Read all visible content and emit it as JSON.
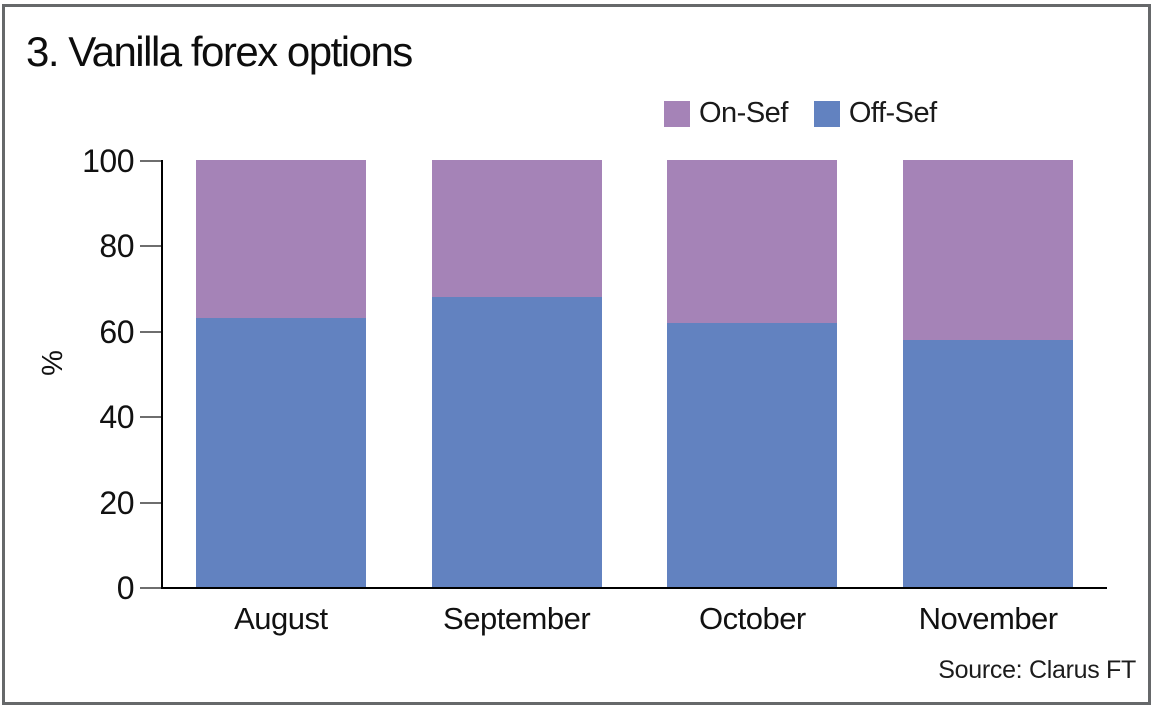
{
  "chart_data": {
    "type": "bar",
    "stacked": true,
    "title": "3. Vanilla forex options",
    "ylabel": "%",
    "ylim": [
      0,
      100
    ],
    "yticks": [
      0,
      20,
      40,
      60,
      80,
      100
    ],
    "categories": [
      "August",
      "September",
      "October",
      "November"
    ],
    "series": [
      {
        "name": "Off-Sef",
        "color": "#6282c0",
        "values": [
          63,
          68,
          62,
          58
        ]
      },
      {
        "name": "On-Sef",
        "color": "#a583b7",
        "values": [
          37,
          32,
          38,
          42
        ]
      }
    ],
    "legend": {
      "position": "top-right",
      "entries": [
        "On-Sef",
        "Off-Sef"
      ]
    },
    "grid": false,
    "axis_color": "#000000",
    "tick_color": "#6e6e6e",
    "frame_border_color": "#66686a",
    "source": "Source: Clarus FT"
  }
}
